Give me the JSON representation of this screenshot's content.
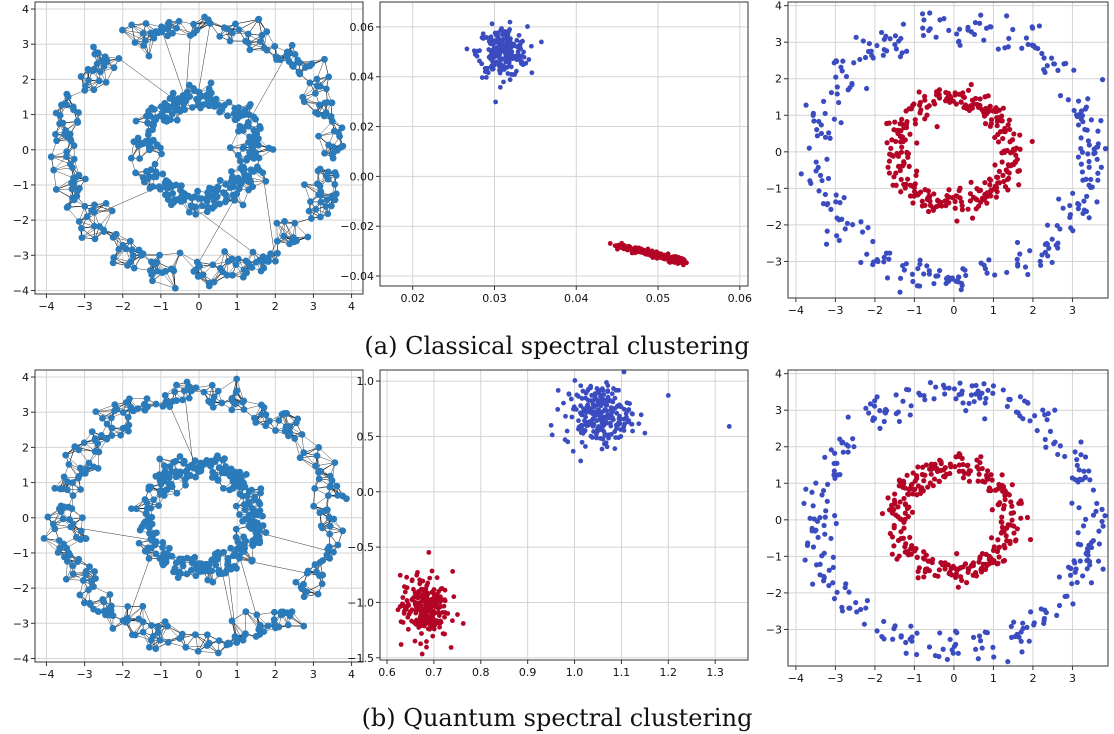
{
  "captions": {
    "a": "(a) Classical spectral clustering",
    "b": "(b) Quantum spectral clustering"
  },
  "colors": {
    "graph_node": "#2b7bba",
    "graph_edge": "#000000",
    "cluster_blue": "#3b4cc0",
    "cluster_red": "#b40426",
    "grid": "#d4d4d4",
    "frame": "#333333"
  },
  "chart_data": [
    {
      "id": "a1",
      "type": "scatter",
      "subtype": "graph",
      "description_of_data": "Two concentric noisy rings (inner radius ~1.5, outer radius ~3.5) drawn as a k-nearest-neighbor graph",
      "rings": [
        {
          "radius": 1.45,
          "count": 300
        },
        {
          "radius": 3.5,
          "count": 300
        }
      ],
      "xlim": [
        -4.3,
        4.3
      ],
      "ylim": [
        -4.1,
        4.2
      ],
      "xticks": [
        -4,
        -3,
        -2,
        -1,
        0,
        1,
        2,
        3,
        4
      ],
      "yticks": [
        -4,
        -3,
        -2,
        -1,
        0,
        1,
        2,
        3,
        4
      ],
      "grid": true
    },
    {
      "id": "a2",
      "type": "scatter",
      "description_of_data": "Spectral embedding of the two rings: blue cluster near (0.031, 0.05), red cluster elongated from (0.044, -0.027) to (0.053, -0.034)",
      "series": [
        {
          "color_key": "cluster_blue",
          "center": [
            0.031,
            0.05
          ],
          "spread": [
            0.0015,
            0.005
          ],
          "count": 220
        },
        {
          "color_key": "cluster_red",
          "line_from": [
            0.044,
            -0.027
          ],
          "line_to": [
            0.053,
            -0.034
          ],
          "count": 220
        }
      ],
      "xlim": [
        0.016,
        0.061
      ],
      "ylim": [
        -0.044,
        0.07
      ],
      "xticks": [
        0.02,
        0.03,
        0.04,
        0.05,
        0.06
      ],
      "ytick_labels": [
        "0.06",
        "0.04",
        "0.02",
        "0.00",
        "−0.02",
        "−0.04"
      ],
      "yticks": [
        0.06,
        0.04,
        0.02,
        0.0,
        -0.02,
        -0.04
      ],
      "grid": true
    },
    {
      "id": "a3",
      "type": "scatter",
      "description_of_data": "Cluster assignment: outer ring blue, inner ring red",
      "series": [
        {
          "color_key": "cluster_red",
          "radius": 1.45,
          "count": 300
        },
        {
          "color_key": "cluster_blue",
          "radius": 3.5,
          "count": 300
        }
      ],
      "xlim": [
        -4.2,
        3.9
      ],
      "ylim": [
        -4.0,
        4.1
      ],
      "xticks": [
        -4,
        -3,
        -2,
        -1,
        0,
        1,
        2,
        3
      ],
      "yticks": [
        -3,
        -2,
        -1,
        0,
        1,
        2,
        3,
        4
      ],
      "grid": true
    },
    {
      "id": "b1",
      "type": "scatter",
      "subtype": "graph",
      "description_of_data": "Same two concentric rings drawn as a graph for quantum spectral clustering",
      "rings": [
        {
          "radius": 1.45,
          "count": 300
        },
        {
          "radius": 3.5,
          "count": 300
        }
      ],
      "xlim": [
        -4.3,
        4.3
      ],
      "ylim": [
        -4.1,
        4.2
      ],
      "xticks": [
        -4,
        -3,
        -2,
        -1,
        0,
        1,
        2,
        3,
        4
      ],
      "yticks": [
        -4,
        -3,
        -2,
        -1,
        0,
        1,
        2,
        3,
        4
      ],
      "grid": true
    },
    {
      "id": "b2",
      "type": "scatter",
      "description_of_data": "Quantum spectral embedding: blue cluster centered near (1.05, 0.7), red cluster centered near (0.68, -1.05), outlier near (1.33, 0.59)",
      "series": [
        {
          "color_key": "cluster_blue",
          "center": [
            1.05,
            0.7
          ],
          "spread": [
            0.035,
            0.14
          ],
          "count": 230,
          "outliers": [
            [
              1.33,
              0.59
            ],
            [
              1.2,
              0.87
            ],
            [
              1.15,
              0.53
            ],
            [
              0.95,
              0.6
            ]
          ]
        },
        {
          "color_key": "cluster_red",
          "center": [
            0.68,
            -1.05
          ],
          "spread": [
            0.025,
            0.14
          ],
          "count": 230,
          "outliers": [
            [
              0.74,
              -0.72
            ],
            [
              0.63,
              -1.38
            ]
          ]
        }
      ],
      "xlim": [
        0.585,
        1.37
      ],
      "ylim": [
        -1.52,
        1.1
      ],
      "xticks": [
        0.6,
        0.7,
        0.8,
        0.9,
        1.0,
        1.1,
        1.2,
        1.3
      ],
      "yticks": [
        1.0,
        0.5,
        0.0,
        -0.5,
        -1.0,
        -1.5
      ],
      "ytick_labels": [
        "1.0",
        "0.5",
        "0.0",
        "−0.5",
        "−1.0",
        "−1.5"
      ],
      "grid": true
    },
    {
      "id": "b3",
      "type": "scatter",
      "description_of_data": "Cluster assignment: outer ring blue, inner ring red",
      "series": [
        {
          "color_key": "cluster_red",
          "radius": 1.45,
          "count": 300
        },
        {
          "color_key": "cluster_blue",
          "radius": 3.5,
          "count": 300
        }
      ],
      "xlim": [
        -4.2,
        3.9
      ],
      "ylim": [
        -4.0,
        4.1
      ],
      "xticks": [
        -4,
        -3,
        -2,
        -1,
        0,
        1,
        2,
        3
      ],
      "yticks": [
        -3,
        -2,
        -1,
        0,
        1,
        2,
        3,
        4
      ],
      "grid": true
    }
  ]
}
